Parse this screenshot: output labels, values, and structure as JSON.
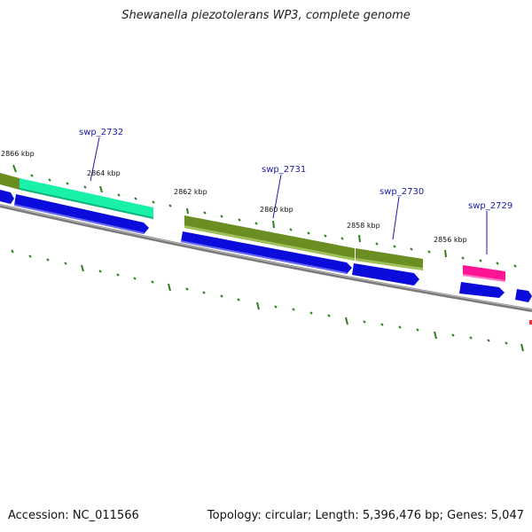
{
  "title": "Shewanella piezotolerans WP3, complete genome",
  "footer": {
    "accession": "Accession: NC_011566",
    "summary": "Topology: circular; Length: 5,396,476 bp; Genes: 5,047"
  },
  "scale_labels": [
    "2866 kbp",
    "2864 kbp",
    "2862 kbp",
    "2860 kbp",
    "2858 kbp",
    "2856 kbp"
  ],
  "gene_labels": [
    "swp_2732",
    "swp_2731",
    "swp_2730",
    "swp_2729"
  ],
  "colors": {
    "backbone": "#7a7a7a",
    "cds_blue": "#0b0bdc",
    "green_feature": "#6b8e23",
    "teal_feature": "#19f0a8",
    "pink_feature": "#ff1493",
    "tick_green": "#2e7d1e",
    "label_blue": "#1a1aa8"
  }
}
